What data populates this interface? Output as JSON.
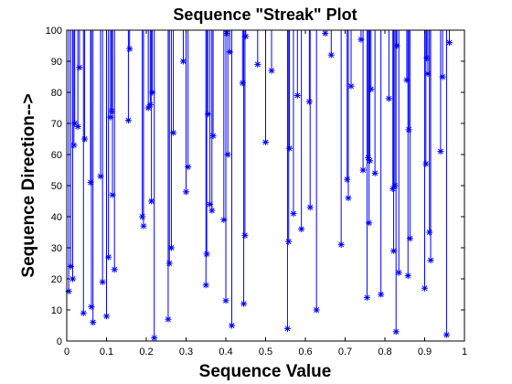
{
  "chart_data": {
    "type": "scatter",
    "title": "Sequence \"Streak\" Plot",
    "xlabel": "Sequence Value",
    "ylabel": "Sequence Direction-->",
    "xlim": [
      0,
      1
    ],
    "ylim": [
      0,
      100
    ],
    "xticks": [
      "0",
      "0.1",
      "0.2",
      "0.3",
      "0.4",
      "0.5",
      "0.6",
      "0.7",
      "0.8",
      "0.9",
      "1"
    ],
    "yticks": [
      "0",
      "10",
      "20",
      "30",
      "40",
      "50",
      "60",
      "70",
      "80",
      "90",
      "100"
    ],
    "grid": false,
    "marker": "*",
    "stem_from": 100,
    "color": "#0000ff",
    "points": [
      {
        "x": 0.005,
        "y": 16
      },
      {
        "x": 0.01,
        "y": 24
      },
      {
        "x": 0.015,
        "y": 20
      },
      {
        "x": 0.018,
        "y": 63
      },
      {
        "x": 0.02,
        "y": 70
      },
      {
        "x": 0.028,
        "y": 69
      },
      {
        "x": 0.032,
        "y": 88
      },
      {
        "x": 0.042,
        "y": 9
      },
      {
        "x": 0.045,
        "y": 65
      },
      {
        "x": 0.06,
        "y": 51
      },
      {
        "x": 0.062,
        "y": 11
      },
      {
        "x": 0.066,
        "y": 6
      },
      {
        "x": 0.085,
        "y": 53
      },
      {
        "x": 0.09,
        "y": 19
      },
      {
        "x": 0.1,
        "y": 8
      },
      {
        "x": 0.105,
        "y": 27
      },
      {
        "x": 0.11,
        "y": 72
      },
      {
        "x": 0.113,
        "y": 74
      },
      {
        "x": 0.115,
        "y": 47
      },
      {
        "x": 0.12,
        "y": 23
      },
      {
        "x": 0.155,
        "y": 71
      },
      {
        "x": 0.158,
        "y": 94
      },
      {
        "x": 0.19,
        "y": 40
      },
      {
        "x": 0.193,
        "y": 37
      },
      {
        "x": 0.205,
        "y": 75
      },
      {
        "x": 0.21,
        "y": 76
      },
      {
        "x": 0.215,
        "y": 80
      },
      {
        "x": 0.213,
        "y": 45
      },
      {
        "x": 0.22,
        "y": 1
      },
      {
        "x": 0.255,
        "y": 7
      },
      {
        "x": 0.258,
        "y": 25
      },
      {
        "x": 0.263,
        "y": 30
      },
      {
        "x": 0.268,
        "y": 67
      },
      {
        "x": 0.293,
        "y": 90
      },
      {
        "x": 0.3,
        "y": 48
      },
      {
        "x": 0.305,
        "y": 56
      },
      {
        "x": 0.35,
        "y": 18
      },
      {
        "x": 0.352,
        "y": 28
      },
      {
        "x": 0.355,
        "y": 73
      },
      {
        "x": 0.36,
        "y": 44
      },
      {
        "x": 0.365,
        "y": 42
      },
      {
        "x": 0.368,
        "y": 66
      },
      {
        "x": 0.395,
        "y": 39
      },
      {
        "x": 0.4,
        "y": 13
      },
      {
        "x": 0.402,
        "y": 99
      },
      {
        "x": 0.405,
        "y": 60
      },
      {
        "x": 0.41,
        "y": 93
      },
      {
        "x": 0.415,
        "y": 5
      },
      {
        "x": 0.442,
        "y": 83
      },
      {
        "x": 0.445,
        "y": 12
      },
      {
        "x": 0.448,
        "y": 34
      },
      {
        "x": 0.45,
        "y": 98
      },
      {
        "x": 0.48,
        "y": 89
      },
      {
        "x": 0.5,
        "y": 64
      },
      {
        "x": 0.515,
        "y": 87
      },
      {
        "x": 0.555,
        "y": 4
      },
      {
        "x": 0.558,
        "y": 32
      },
      {
        "x": 0.56,
        "y": 62
      },
      {
        "x": 0.57,
        "y": 41
      },
      {
        "x": 0.58,
        "y": 79
      },
      {
        "x": 0.59,
        "y": 36
      },
      {
        "x": 0.61,
        "y": 77
      },
      {
        "x": 0.612,
        "y": 43
      },
      {
        "x": 0.628,
        "y": 10
      },
      {
        "x": 0.65,
        "y": 99
      },
      {
        "x": 0.665,
        "y": 92
      },
      {
        "x": 0.69,
        "y": 31
      },
      {
        "x": 0.705,
        "y": 52
      },
      {
        "x": 0.708,
        "y": 46
      },
      {
        "x": 0.715,
        "y": 82
      },
      {
        "x": 0.74,
        "y": 97
      },
      {
        "x": 0.745,
        "y": 55
      },
      {
        "x": 0.755,
        "y": 14
      },
      {
        "x": 0.758,
        "y": 59
      },
      {
        "x": 0.76,
        "y": 38
      },
      {
        "x": 0.762,
        "y": 58
      },
      {
        "x": 0.765,
        "y": 81
      },
      {
        "x": 0.775,
        "y": 54
      },
      {
        "x": 0.79,
        "y": 15
      },
      {
        "x": 0.81,
        "y": 78
      },
      {
        "x": 0.82,
        "y": 49
      },
      {
        "x": 0.822,
        "y": 29
      },
      {
        "x": 0.825,
        "y": 50
      },
      {
        "x": 0.828,
        "y": 3
      },
      {
        "x": 0.83,
        "y": 95
      },
      {
        "x": 0.835,
        "y": 22
      },
      {
        "x": 0.855,
        "y": 84
      },
      {
        "x": 0.858,
        "y": 21
      },
      {
        "x": 0.86,
        "y": 68
      },
      {
        "x": 0.863,
        "y": 33
      },
      {
        "x": 0.9,
        "y": 17
      },
      {
        "x": 0.903,
        "y": 57
      },
      {
        "x": 0.905,
        "y": 91
      },
      {
        "x": 0.908,
        "y": 86
      },
      {
        "x": 0.912,
        "y": 35
      },
      {
        "x": 0.915,
        "y": 26
      },
      {
        "x": 0.94,
        "y": 61
      },
      {
        "x": 0.945,
        "y": 85
      },
      {
        "x": 0.955,
        "y": 2
      },
      {
        "x": 0.962,
        "y": 96
      }
    ]
  }
}
